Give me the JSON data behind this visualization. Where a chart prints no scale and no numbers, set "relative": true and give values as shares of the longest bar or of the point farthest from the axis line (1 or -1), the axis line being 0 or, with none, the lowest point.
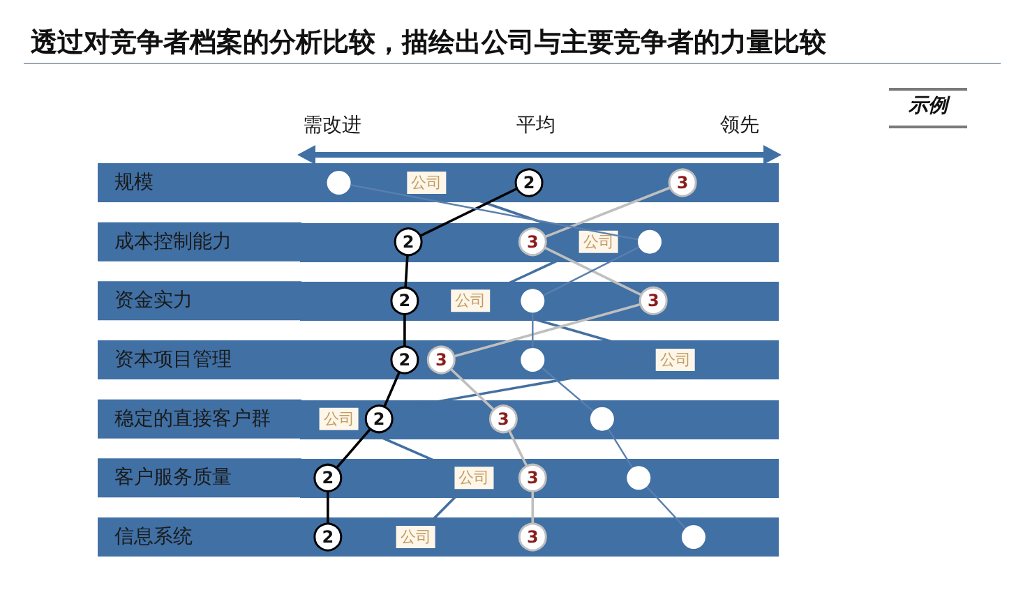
{
  "chart_data": {
    "type": "line",
    "title": "透过对竞争者档案的分析比较，描绘出公司与主要竞争者的力量比较",
    "annotations": [
      "示例",
      "需改进",
      "平均",
      "领先"
    ],
    "orientation": "horizontal",
    "grid": "y",
    "relative": true,
    "categories": [
      "规模",
      "成本控制能力",
      "资金实力",
      "资本项目管理",
      "稳定的直接客户群",
      "客户服务质量",
      "信息系统"
    ],
    "series": [
      {
        "name": "公司",
        "color": "#44709f",
        "marker": "square",
        "values": [
          0.27,
          0.74,
          0.39,
          0.95,
          0.03,
          0.4,
          0.24
        ]
      },
      {
        "name": "2",
        "color": "#000000",
        "marker": "circle",
        "values": [
          0.55,
          0.22,
          0.21,
          0.21,
          0.14,
          0,
          0
        ]
      },
      {
        "name": "3",
        "color": "#bfbfbf",
        "marker": "circle",
        "values": [
          0.97,
          0.56,
          0.89,
          0.31,
          0.48,
          0.56,
          0.56
        ]
      },
      {
        "color": "#5a7fae",
        "marker": "circle",
        "values": [
          0.03,
          0.88,
          0.56,
          0.56,
          0.75,
          0.85,
          1
        ]
      }
    ]
  }
}
